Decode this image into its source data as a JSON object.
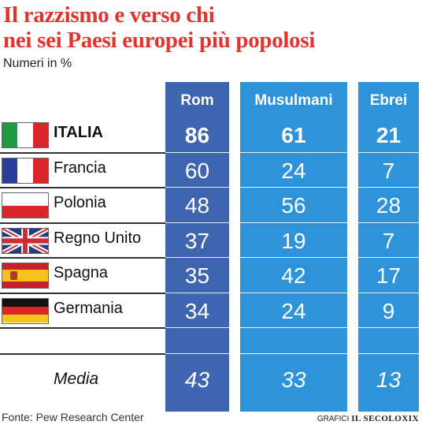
{
  "title_lines": [
    "Il razzismo e verso chi",
    "nei sei Paesi europei più popolosi"
  ],
  "subtitle": "Numeri in %",
  "chart_data": {
    "type": "table",
    "columns": [
      "Rom",
      "Musulmani",
      "Ebrei"
    ],
    "rows": [
      {
        "country": "ITALIA",
        "flag": "italy-flag",
        "values": [
          "86",
          "61",
          "21"
        ]
      },
      {
        "country": "Francia",
        "flag": "france-flag",
        "values": [
          "60",
          "24",
          "7"
        ]
      },
      {
        "country": "Polonia",
        "flag": "poland-flag",
        "values": [
          "48",
          "56",
          "28"
        ]
      },
      {
        "country": "Regno Unito",
        "flag": "uk-flag",
        "values": [
          "37",
          "19",
          "7"
        ]
      },
      {
        "country": "Spagna",
        "flag": "spain-flag",
        "values": [
          "35",
          "42",
          "17"
        ]
      },
      {
        "country": "Germania",
        "flag": "germany-flag",
        "values": [
          "34",
          "24",
          "9"
        ]
      }
    ],
    "average": {
      "label": "Media",
      "values": [
        "43",
        "33",
        "13"
      ]
    }
  },
  "source": "Fonte: Pew Research Center",
  "credit_prefix": "GRAFICI",
  "credit_brand": "IL SECOLOXIX",
  "colors": {
    "title": "#e2332e",
    "rom_column": "#3f64b0",
    "other_columns": "#2f93d9"
  }
}
